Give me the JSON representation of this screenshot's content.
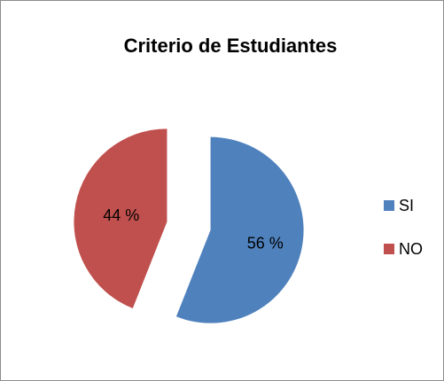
{
  "chart_data": {
    "type": "pie",
    "title": "Criterio de Estudiantes",
    "categories": [
      "SI",
      "NO"
    ],
    "values": [
      56,
      44
    ],
    "value_labels": [
      "56 %",
      "44 %"
    ],
    "colors": [
      "#4f81bd",
      "#c0504d"
    ],
    "legend": "right",
    "exploded": true
  }
}
